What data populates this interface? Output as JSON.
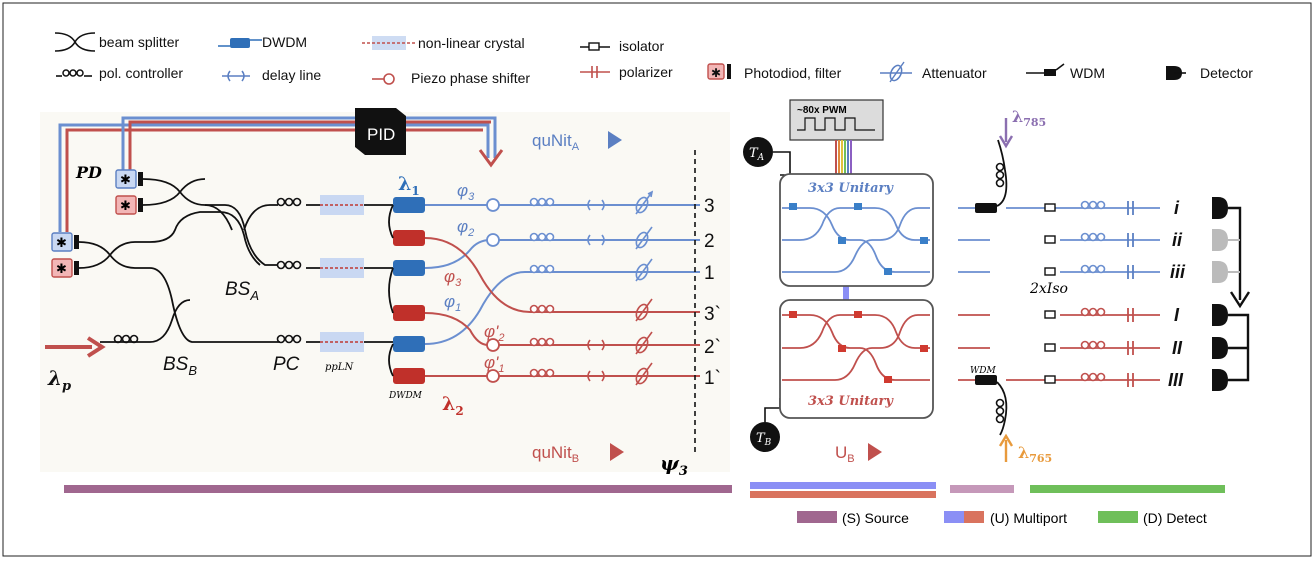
{
  "legend": {
    "beam_splitter": "beam splitter",
    "pol_controller": "pol. controller",
    "dwdm": "DWDM",
    "delay_line": "delay line",
    "nonlinear_crystal": "non-linear crystal",
    "piezo": "Piezo phase shifter",
    "isolator": "isolator",
    "polarizer": "polarizer",
    "photodiode": "Photodiod, filter",
    "attenuator": "Attenuator",
    "wdm": "WDM",
    "detector": "Detector"
  },
  "labels": {
    "pid": "PID",
    "pd": "PD",
    "bs_a": "BS",
    "bs_a_sub": "A",
    "bs_b": "BS",
    "bs_b_sub": "B",
    "pc": "PC",
    "pplN": "ppLN",
    "dwdm_small": "DWDM",
    "lambda1": "λ",
    "lambda1_sub": "1",
    "lambda2": "λ",
    "lambda2_sub": "2",
    "lambdap": "λ",
    "lambdap_sub": "p",
    "phi3": "φ",
    "phi3_sub": "3",
    "phi2": "φ",
    "phi2_sub": "2",
    "phi1": "φ",
    "phi1_sub": "1",
    "phi3b": "φ",
    "phi3b_sub": "3",
    "phi1b": "φ",
    "phi1b_sub": "1",
    "phi2p": "φ'",
    "phi2p_sub": "2",
    "phi1p": "φ'",
    "phi1p_sub": "1",
    "qunit_a": "quNit",
    "qunit_a_sub": "A",
    "qunit_b": "quNit",
    "qunit_b_sub": "B",
    "psi": "ψ",
    "psi_sub": "3",
    "port_3": "3",
    "port_2": "2",
    "port_1": "1",
    "port_3b": "3`",
    "port_2b": "2`",
    "port_1b": "1`",
    "pwm": "~80x PWM",
    "ta": "T",
    "ta_sub": "A",
    "tb": "T",
    "tb_sub": "B",
    "unitary_top": "3x3 Unitary",
    "unitary_bottom": "3x3 Unitary",
    "ub": "U",
    "ub_sub": "B",
    "lambda785": "λ",
    "lambda785_sub": "785",
    "lambda765": "λ",
    "lambda765_sub": "765",
    "wdm_small": "WDM",
    "iso": "2xIso",
    "det_i": "i",
    "det_ii": "ii",
    "det_iii": "iii",
    "det_I": "I",
    "det_II": "II",
    "det_III": "III"
  },
  "sections": {
    "source": "(S) Source",
    "multiport": "(U) Multiport",
    "detect": "(D) Detect"
  },
  "colors": {
    "blue": "#5b7fc2",
    "red": "#c0504d",
    "source_bar": "#a0678f",
    "multiport_blue": "#8b8ff5",
    "multiport_red": "#d9735e",
    "detect_bar": "#6fbf5a"
  }
}
